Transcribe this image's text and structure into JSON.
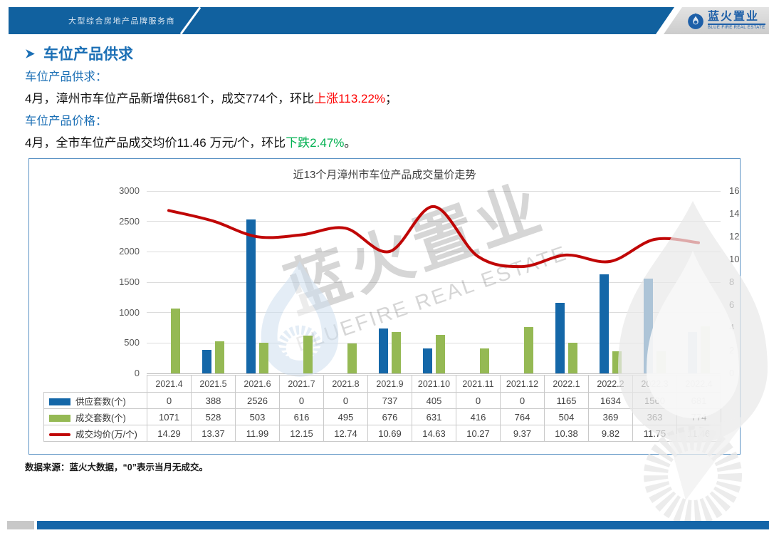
{
  "header": {
    "slogan": "大型综合房地产品牌服务商",
    "logo_cn": "蓝火置业",
    "logo_en": "BLUE FIRE REAL ESTATE"
  },
  "page_title": "车位产品供求",
  "summary": {
    "supply_label": "车位产品供求：",
    "supply_prefix": "4月，漳州市车位产品新增供681个，成交774个，环比",
    "supply_highlight": "上涨113.22%",
    "supply_suffix": "；",
    "price_label": "车位产品价格：",
    "price_prefix": "4月，全市车位产品成交均价11.46 万元/个，环比",
    "price_highlight": "下跌2.47%",
    "price_suffix": "。"
  },
  "chart_data": {
    "type": "bar",
    "title": "近13个月漳州市车位产品成交量价走势",
    "categories": [
      "2021.4",
      "2021.5",
      "2021.6",
      "2021.7",
      "2021.8",
      "2021.9",
      "2021.10",
      "2021.11",
      "2021.12",
      "2022.1",
      "2022.2",
      "2022.3",
      "2022.4"
    ],
    "series": [
      {
        "name": "供应套数(个)",
        "type": "bar",
        "axis": "left",
        "color": "#1467a8",
        "values": [
          0,
          388,
          2526,
          0,
          0,
          737,
          405,
          0,
          0,
          1165,
          1634,
          1560,
          681
        ]
      },
      {
        "name": "成交套数(个)",
        "type": "bar",
        "axis": "left",
        "color": "#95b954",
        "values": [
          1071,
          528,
          503,
          616,
          495,
          676,
          631,
          416,
          764,
          504,
          369,
          363,
          774
        ]
      },
      {
        "name": "成交均价(万/个)",
        "type": "line",
        "axis": "right",
        "color": "#c00606",
        "values": [
          14.29,
          13.37,
          11.99,
          12.15,
          12.74,
          10.69,
          14.63,
          10.27,
          9.37,
          10.38,
          9.82,
          11.75,
          11.46
        ]
      }
    ],
    "left_axis": {
      "min": 0,
      "max": 3000,
      "step": 500
    },
    "right_axis": {
      "min": 0,
      "max": 16,
      "step": 2
    },
    "grid": true,
    "legend_position": "table"
  },
  "watermark": {
    "cn": "蓝火置业",
    "en": "BLUEFIRE REAL ESTATE"
  },
  "footer_note": "数据来源：蓝火大数据，“0”表示当月无成交。",
  "colors": {
    "header_blue": "#11619f",
    "bar_blue": "#1467a8",
    "bar_green": "#95b954",
    "line_red": "#c00606",
    "text_blue": "#1b6fb5",
    "up_red": "#fe0000",
    "down_green": "#00b050"
  }
}
